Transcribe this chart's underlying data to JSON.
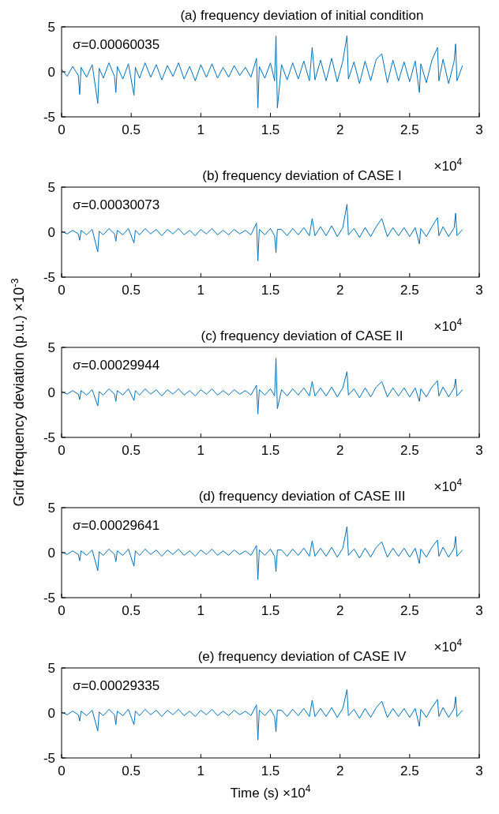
{
  "chart_data": [
    {
      "type": "line",
      "title": "(a) frequency deviation of initial condition",
      "annotations": [
        "σ=0.00060035",
        "×10$^{4}$"
      ],
      "xlim": [
        0,
        3
      ],
      "ylim": [
        -5,
        5
      ],
      "xticks": [
        0,
        0.5,
        1,
        1.5,
        2,
        2.5,
        3
      ],
      "yticks": [
        -5,
        0,
        5
      ],
      "x": [
        0,
        0.04,
        0.08,
        0.12,
        0.13,
        0.14,
        0.18,
        0.22,
        0.26,
        0.27,
        0.3,
        0.34,
        0.38,
        0.39,
        0.4,
        0.44,
        0.48,
        0.52,
        0.53,
        0.56,
        0.6,
        0.64,
        0.68,
        0.72,
        0.76,
        0.8,
        0.84,
        0.88,
        0.92,
        0.96,
        1,
        1.04,
        1.08,
        1.12,
        1.16,
        1.2,
        1.24,
        1.28,
        1.32,
        1.36,
        1.4,
        1.41,
        1.42,
        1.46,
        1.5,
        1.53,
        1.54,
        1.55,
        1.58,
        1.62,
        1.66,
        1.7,
        1.74,
        1.78,
        1.8,
        1.82,
        1.86,
        1.9,
        1.94,
        1.98,
        2.02,
        2.05,
        2.06,
        2.1,
        2.14,
        2.18,
        2.22,
        2.26,
        2.3,
        2.34,
        2.38,
        2.42,
        2.46,
        2.5,
        2.54,
        2.57,
        2.58,
        2.62,
        2.66,
        2.7,
        2.71,
        2.74,
        2.78,
        2.82,
        2.83,
        2.84,
        2.88
      ],
      "series": [
        {
          "color": "#0072bd",
          "values": [
            0.3,
            -0.5,
            0.6,
            -0.4,
            -2.5,
            0.5,
            -0.6,
            0.8,
            -3.5,
            0.4,
            -0.7,
            1,
            -0.5,
            -2.3,
            0.6,
            -0.8,
            0.9,
            -2.6,
            0.5,
            -0.7,
            1,
            -0.6,
            0.8,
            -0.9,
            0.7,
            -0.5,
            1,
            -0.8,
            0.6,
            -1,
            0.8,
            -0.6,
            0.9,
            -0.7,
            0.5,
            -0.6,
            0.7,
            -0.4,
            0.5,
            -0.6,
            1.5,
            -4,
            0.6,
            -0.7,
            1,
            -1,
            4,
            -4,
            0.8,
            -0.9,
            1,
            -0.8,
            1.2,
            -1,
            2.7,
            -0.9,
            1.3,
            -1,
            1.5,
            -1.1,
            1.2,
            4,
            -0.8,
            1.1,
            -1.3,
            1.2,
            -1,
            1.4,
            2,
            -1.2,
            1.3,
            -1,
            1.1,
            -1.1,
            1.2,
            -2.3,
            0.9,
            -1.2,
            1.3,
            2.7,
            -1,
            1.4,
            -1.3,
            1.2,
            3.1,
            -1,
            0.7
          ]
        }
      ]
    },
    {
      "type": "line",
      "title": "(b) frequency deviation of CASE I",
      "annotations": [
        "σ=0.00030073",
        "×10$^{4}$"
      ],
      "xlim": [
        0,
        3
      ],
      "ylim": [
        -5,
        5
      ],
      "xticks": [
        0,
        0.5,
        1,
        1.5,
        2,
        2.5,
        3
      ],
      "yticks": [
        -5,
        0,
        5
      ],
      "x": [
        0,
        0.04,
        0.08,
        0.12,
        0.13,
        0.14,
        0.18,
        0.22,
        0.26,
        0.27,
        0.3,
        0.34,
        0.38,
        0.39,
        0.4,
        0.44,
        0.48,
        0.52,
        0.53,
        0.56,
        0.6,
        0.64,
        0.68,
        0.72,
        0.76,
        0.8,
        0.84,
        0.88,
        0.92,
        0.96,
        1,
        1.04,
        1.08,
        1.12,
        1.16,
        1.2,
        1.24,
        1.28,
        1.32,
        1.36,
        1.4,
        1.41,
        1.42,
        1.46,
        1.5,
        1.53,
        1.54,
        1.55,
        1.58,
        1.62,
        1.66,
        1.7,
        1.74,
        1.78,
        1.8,
        1.82,
        1.86,
        1.9,
        1.94,
        1.98,
        2.02,
        2.05,
        2.06,
        2.1,
        2.14,
        2.18,
        2.22,
        2.26,
        2.3,
        2.34,
        2.38,
        2.42,
        2.46,
        2.5,
        2.54,
        2.57,
        2.58,
        2.62,
        2.66,
        2.7,
        2.71,
        2.74,
        2.78,
        2.82,
        2.83,
        2.84,
        2.88
      ],
      "series": [
        {
          "color": "#0072bd",
          "values": [
            0.1,
            -0.2,
            0.2,
            -0.2,
            -0.9,
            0.2,
            -0.3,
            0.3,
            -2.2,
            0.1,
            -0.3,
            0.4,
            -0.2,
            -1,
            0.2,
            -0.3,
            0.4,
            -1.2,
            0.2,
            -0.3,
            0.4,
            -0.2,
            0.3,
            -0.4,
            0.3,
            -0.2,
            0.4,
            -0.3,
            0.2,
            -0.4,
            0.3,
            -0.2,
            0.4,
            -0.3,
            0.2,
            -0.3,
            0.3,
            -0.2,
            0.2,
            -0.3,
            1,
            -3.2,
            0.3,
            -0.3,
            0.4,
            -0.4,
            -2.3,
            0.3,
            0.3,
            -0.4,
            0.4,
            -0.3,
            0.5,
            -0.4,
            1.5,
            -0.4,
            0.6,
            -0.4,
            0.7,
            -0.5,
            0.5,
            3.1,
            -0.3,
            0.4,
            -0.6,
            0.5,
            -0.5,
            0.6,
            1.5,
            -0.5,
            0.5,
            -0.4,
            0.5,
            -0.5,
            0.5,
            -1.3,
            0.4,
            -0.5,
            0.6,
            1.6,
            -0.4,
            0.6,
            -0.5,
            0.5,
            2.1,
            -0.4,
            0.3
          ]
        }
      ]
    },
    {
      "type": "line",
      "title": "(c) frequency deviation of CASE II",
      "ylabel": "Grid frequency deviation (p.u.) ×10$^{-3}$",
      "annotations": [
        "σ=0.00029944",
        "×10$^{4}$"
      ],
      "xlim": [
        0,
        3
      ],
      "ylim": [
        -5,
        5
      ],
      "xticks": [
        0,
        0.5,
        1,
        1.5,
        2,
        2.5,
        3
      ],
      "yticks": [
        -5,
        0,
        5
      ],
      "x": [
        0,
        0.04,
        0.08,
        0.12,
        0.13,
        0.14,
        0.18,
        0.22,
        0.26,
        0.27,
        0.3,
        0.34,
        0.38,
        0.39,
        0.4,
        0.44,
        0.48,
        0.52,
        0.53,
        0.56,
        0.6,
        0.64,
        0.68,
        0.72,
        0.76,
        0.8,
        0.84,
        0.88,
        0.92,
        0.96,
        1,
        1.04,
        1.08,
        1.12,
        1.16,
        1.2,
        1.24,
        1.28,
        1.32,
        1.36,
        1.4,
        1.41,
        1.42,
        1.46,
        1.5,
        1.53,
        1.54,
        1.55,
        1.58,
        1.62,
        1.66,
        1.7,
        1.74,
        1.78,
        1.8,
        1.82,
        1.86,
        1.9,
        1.94,
        1.98,
        2.02,
        2.05,
        2.06,
        2.1,
        2.14,
        2.18,
        2.22,
        2.26,
        2.3,
        2.34,
        2.38,
        2.42,
        2.46,
        2.5,
        2.54,
        2.57,
        2.58,
        2.62,
        2.66,
        2.7,
        2.71,
        2.74,
        2.78,
        2.82,
        2.83,
        2.84,
        2.88
      ],
      "series": [
        {
          "color": "#0072bd",
          "values": [
            0.1,
            -0.2,
            0.2,
            -0.2,
            -0.8,
            0.2,
            -0.3,
            0.3,
            -1.5,
            0.1,
            -0.3,
            0.4,
            -0.2,
            -1,
            0.2,
            -0.3,
            0.4,
            -0.9,
            0.2,
            -0.3,
            0.4,
            -0.2,
            0.3,
            -0.4,
            0.3,
            -0.2,
            0.4,
            -0.3,
            0.2,
            -0.4,
            0.3,
            -0.2,
            0.4,
            -0.3,
            0.2,
            -0.3,
            0.3,
            -0.2,
            0.2,
            -0.3,
            0.8,
            -2.4,
            0.3,
            -0.3,
            0.4,
            -0.4,
            3.8,
            -1.8,
            0.3,
            -0.4,
            0.4,
            -0.3,
            0.5,
            -0.4,
            1.2,
            -0.4,
            0.5,
            -0.4,
            0.6,
            -0.5,
            0.5,
            2.3,
            -0.3,
            0.4,
            -0.6,
            0.5,
            -0.5,
            0.6,
            1.2,
            -0.5,
            0.5,
            -0.4,
            0.5,
            -0.5,
            0.5,
            -1,
            0.4,
            -0.5,
            0.6,
            1.3,
            -0.4,
            0.6,
            -0.5,
            0.5,
            1.5,
            -0.4,
            0.3
          ]
        }
      ]
    },
    {
      "type": "line",
      "title": "(d) frequency deviation of CASE III",
      "annotations": [
        "σ=0.00029641",
        "×10$^{4}$"
      ],
      "xlim": [
        0,
        3
      ],
      "ylim": [
        -5,
        5
      ],
      "xticks": [
        0,
        0.5,
        1,
        1.5,
        2,
        2.5,
        3
      ],
      "yticks": [
        -5,
        0,
        5
      ],
      "x": [
        0,
        0.04,
        0.08,
        0.12,
        0.13,
        0.14,
        0.18,
        0.22,
        0.26,
        0.27,
        0.3,
        0.34,
        0.38,
        0.39,
        0.4,
        0.44,
        0.48,
        0.52,
        0.53,
        0.56,
        0.6,
        0.64,
        0.68,
        0.72,
        0.76,
        0.8,
        0.84,
        0.88,
        0.92,
        0.96,
        1,
        1.04,
        1.08,
        1.12,
        1.16,
        1.2,
        1.24,
        1.28,
        1.32,
        1.36,
        1.4,
        1.41,
        1.42,
        1.46,
        1.5,
        1.53,
        1.54,
        1.55,
        1.58,
        1.62,
        1.66,
        1.7,
        1.74,
        1.78,
        1.8,
        1.82,
        1.86,
        1.9,
        1.94,
        1.98,
        2.02,
        2.05,
        2.06,
        2.1,
        2.14,
        2.18,
        2.22,
        2.26,
        2.3,
        2.34,
        2.38,
        2.42,
        2.46,
        2.5,
        2.54,
        2.57,
        2.58,
        2.62,
        2.66,
        2.7,
        2.71,
        2.74,
        2.78,
        2.82,
        2.83,
        2.84,
        2.88
      ],
      "series": [
        {
          "color": "#0072bd",
          "values": [
            0.1,
            -0.2,
            0.2,
            -0.2,
            -0.9,
            0.2,
            -0.3,
            0.3,
            -2,
            0.1,
            -0.3,
            0.4,
            -0.2,
            -1,
            0.2,
            -0.3,
            0.4,
            -1.5,
            0.2,
            -0.3,
            0.4,
            -0.2,
            0.3,
            -0.4,
            0.3,
            -0.2,
            0.4,
            -0.3,
            0.2,
            -0.4,
            0.3,
            -0.2,
            0.4,
            -0.3,
            0.2,
            -0.3,
            0.3,
            -0.2,
            0.2,
            -0.3,
            0.8,
            -3,
            0.3,
            -0.3,
            0.4,
            -0.4,
            -2.1,
            0.3,
            0.3,
            -0.4,
            0.4,
            -0.3,
            0.5,
            -0.4,
            1.3,
            -0.4,
            0.5,
            -0.4,
            0.6,
            -0.5,
            0.5,
            2.9,
            -0.3,
            0.4,
            -0.6,
            0.5,
            -0.5,
            0.6,
            1.2,
            -0.5,
            0.5,
            -0.4,
            0.5,
            -0.5,
            0.5,
            -1.2,
            0.4,
            -0.5,
            0.6,
            1.4,
            -0.4,
            0.6,
            -0.5,
            0.5,
            1.8,
            -0.4,
            0.3
          ]
        }
      ]
    },
    {
      "type": "line",
      "title": "(e) frequency deviation of CASE IV",
      "xlabel": "Time (s) ×10$^{4}$",
      "annotations": [
        "σ=0.00029335"
      ],
      "xlim": [
        0,
        3
      ],
      "ylim": [
        -5,
        5
      ],
      "xticks": [
        0,
        0.5,
        1,
        1.5,
        2,
        2.5,
        3
      ],
      "yticks": [
        -5,
        0,
        5
      ],
      "x": [
        0,
        0.04,
        0.08,
        0.12,
        0.13,
        0.14,
        0.18,
        0.22,
        0.26,
        0.27,
        0.3,
        0.34,
        0.38,
        0.39,
        0.4,
        0.44,
        0.48,
        0.52,
        0.53,
        0.56,
        0.6,
        0.64,
        0.68,
        0.72,
        0.76,
        0.8,
        0.84,
        0.88,
        0.92,
        0.96,
        1,
        1.04,
        1.08,
        1.12,
        1.16,
        1.2,
        1.24,
        1.28,
        1.32,
        1.36,
        1.4,
        1.41,
        1.42,
        1.46,
        1.5,
        1.53,
        1.54,
        1.55,
        1.58,
        1.62,
        1.66,
        1.7,
        1.74,
        1.78,
        1.8,
        1.82,
        1.86,
        1.9,
        1.94,
        1.98,
        2.02,
        2.05,
        2.06,
        2.1,
        2.14,
        2.18,
        2.22,
        2.26,
        2.3,
        2.34,
        2.38,
        2.42,
        2.46,
        2.5,
        2.54,
        2.57,
        2.58,
        2.62,
        2.66,
        2.7,
        2.71,
        2.74,
        2.78,
        2.82,
        2.83,
        2.84,
        2.88
      ],
      "series": [
        {
          "color": "#0072bd",
          "values": [
            0.1,
            -0.2,
            0.2,
            -0.2,
            -0.9,
            0.2,
            -0.3,
            0.3,
            -2,
            0.1,
            -0.3,
            0.4,
            -0.2,
            -1.3,
            0.2,
            -0.3,
            0.4,
            -1.3,
            0.2,
            -0.3,
            0.4,
            -0.2,
            0.3,
            -0.4,
            0.3,
            -0.2,
            0.4,
            -0.3,
            0.2,
            -0.4,
            0.3,
            -0.2,
            0.4,
            -0.3,
            0.2,
            -0.3,
            0.3,
            -0.2,
            0.2,
            -0.3,
            0.9,
            -3,
            0.3,
            -0.3,
            0.4,
            -0.4,
            -2.1,
            0.3,
            0.3,
            -0.4,
            0.4,
            -0.3,
            0.5,
            -0.4,
            1.4,
            -0.4,
            0.5,
            -0.4,
            0.6,
            -0.5,
            0.5,
            2.6,
            -0.3,
            0.4,
            -0.6,
            0.5,
            -0.5,
            0.6,
            1.3,
            -0.5,
            0.5,
            -0.4,
            0.5,
            -0.5,
            0.5,
            -1.5,
            0.4,
            -0.5,
            0.6,
            1.5,
            -0.4,
            0.6,
            -0.5,
            0.5,
            1.8,
            -0.4,
            0.3
          ]
        }
      ]
    }
  ]
}
